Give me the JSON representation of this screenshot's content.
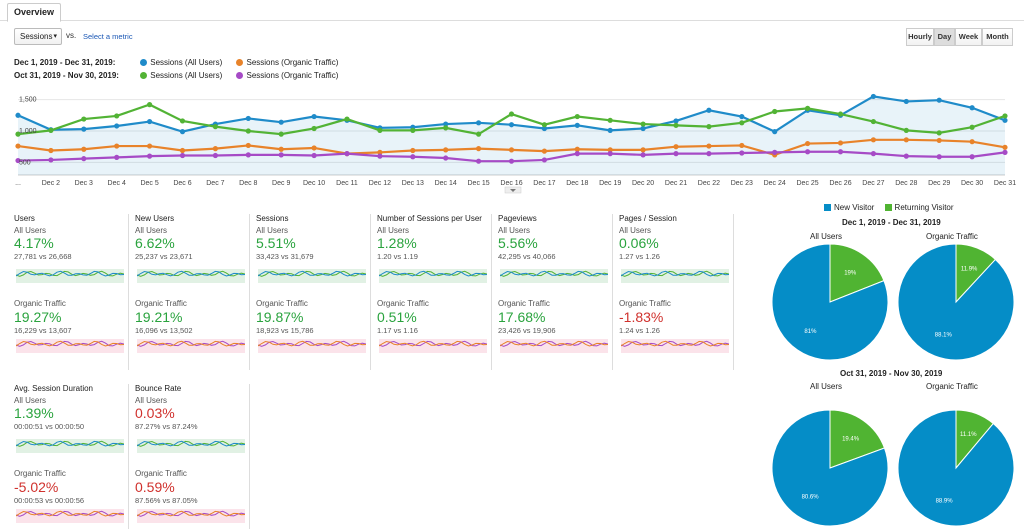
{
  "tab": {
    "label": "Overview"
  },
  "toolbar": {
    "metric_select": "Sessions",
    "vs_label": "vs.",
    "select_metric_link": "Select a metric",
    "granularity": [
      "Hourly",
      "Day",
      "Week",
      "Month"
    ],
    "active_granularity": "Day"
  },
  "legend": {
    "rows": [
      {
        "range": "Dec 1, 2019 - Dec 31, 2019:",
        "items": [
          {
            "label": "Sessions (All Users)",
            "color": "#1f8bc9"
          },
          {
            "label": "Sessions (Organic Traffic)",
            "color": "#e8832a"
          }
        ]
      },
      {
        "range": "Oct 31, 2019 - Nov 30, 2019:",
        "items": [
          {
            "label": "Sessions (All Users)",
            "color": "#52b335"
          },
          {
            "label": "Sessions (Organic Traffic)",
            "color": "#a64bc6"
          }
        ]
      }
    ]
  },
  "chart_data": {
    "type": "line",
    "y_ticks": [
      "1,500",
      "1,000",
      "500"
    ],
    "ylim": [
      300,
      1700
    ],
    "x_labels": [
      "...",
      "Dec 2",
      "Dec 3",
      "Dec 4",
      "Dec 5",
      "Dec 6",
      "Dec 7",
      "Dec 8",
      "Dec 9",
      "Dec 10",
      "Dec 11",
      "Dec 12",
      "Dec 13",
      "Dec 14",
      "Dec 15",
      "Dec 16",
      "Dec 17",
      "Dec 18",
      "Dec 19",
      "Dec 20",
      "Dec 21",
      "Dec 22",
      "Dec 23",
      "Dec 24",
      "Dec 25",
      "Dec 26",
      "Dec 27",
      "Dec 28",
      "Dec 29",
      "Dec 30",
      "Dec 31"
    ],
    "series": [
      {
        "name": "Sessions (All Users) Dec 1, 2019 - Dec 31, 2019",
        "color": "#1f8bc9",
        "fill": true,
        "values": [
          1250,
          1020,
          1030,
          1080,
          1150,
          990,
          1110,
          1200,
          1140,
          1230,
          1170,
          1050,
          1060,
          1110,
          1130,
          1100,
          1040,
          1090,
          1010,
          1040,
          1160,
          1330,
          1230,
          990,
          1330,
          1250,
          1550,
          1470,
          1490,
          1370,
          1170
        ]
      },
      {
        "name": "Sessions (Organic Traffic) Dec 1, 2019 - Dec 31, 2019",
        "color": "#e8832a",
        "fill": false,
        "values": [
          760,
          690,
          710,
          760,
          760,
          690,
          720,
          770,
          710,
          730,
          640,
          660,
          690,
          700,
          720,
          700,
          680,
          710,
          700,
          700,
          750,
          760,
          770,
          620,
          800,
          810,
          860,
          860,
          850,
          830,
          740
        ]
      },
      {
        "name": "Sessions (All Users) Oct 31, 2019 - Nov 30, 2019",
        "color": "#52b335",
        "fill": false,
        "values": [
          950,
          1010,
          1190,
          1240,
          1420,
          1160,
          1070,
          1000,
          950,
          1040,
          1190,
          1010,
          1010,
          1050,
          950,
          1270,
          1100,
          1230,
          1170,
          1110,
          1090,
          1070,
          1130,
          1310,
          1360,
          1270,
          1150,
          1010,
          970,
          1060,
          1240
        ]
      },
      {
        "name": "Sessions (Organic Traffic) Oct 31, 2019 - Nov 30, 2019",
        "color": "#a64bc6",
        "fill": false,
        "values": [
          530,
          540,
          560,
          580,
          600,
          610,
          610,
          620,
          620,
          610,
          640,
          600,
          590,
          570,
          520,
          520,
          540,
          640,
          640,
          620,
          640,
          640,
          650,
          660,
          670,
          670,
          640,
          600,
          590,
          590,
          660
        ]
      }
    ]
  },
  "tiles": [
    {
      "name": "Users",
      "all": {
        "seg": "All Users",
        "pct": "4.17%",
        "cmp": "27,781 vs 26,668",
        "dir": "pos"
      },
      "org": {
        "seg": "Organic Traffic",
        "pct": "19.27%",
        "cmp": "16,229 vs 13,607",
        "dir": "pos"
      }
    },
    {
      "name": "New Users",
      "all": {
        "seg": "All Users",
        "pct": "6.62%",
        "cmp": "25,237 vs 23,671",
        "dir": "pos"
      },
      "org": {
        "seg": "Organic Traffic",
        "pct": "19.21%",
        "cmp": "16,096 vs 13,502",
        "dir": "pos"
      }
    },
    {
      "name": "Sessions",
      "all": {
        "seg": "All Users",
        "pct": "5.51%",
        "cmp": "33,423 vs 31,679",
        "dir": "pos"
      },
      "org": {
        "seg": "Organic Traffic",
        "pct": "19.87%",
        "cmp": "18,923 vs 15,786",
        "dir": "pos"
      }
    },
    {
      "name": "Number of Sessions per User",
      "all": {
        "seg": "All Users",
        "pct": "1.28%",
        "cmp": "1.20 vs 1.19",
        "dir": "pos"
      },
      "org": {
        "seg": "Organic Traffic",
        "pct": "0.51%",
        "cmp": "1.17 vs 1.16",
        "dir": "pos"
      }
    },
    {
      "name": "Pageviews",
      "all": {
        "seg": "All Users",
        "pct": "5.56%",
        "cmp": "42,295 vs 40,066",
        "dir": "pos"
      },
      "org": {
        "seg": "Organic Traffic",
        "pct": "17.68%",
        "cmp": "23,426 vs 19,906",
        "dir": "pos"
      }
    },
    {
      "name": "Pages / Session",
      "all": {
        "seg": "All Users",
        "pct": "0.06%",
        "cmp": "1.27 vs 1.26",
        "dir": "pos"
      },
      "org": {
        "seg": "Organic Traffic",
        "pct": "-1.83%",
        "cmp": "1.24 vs 1.26",
        "dir": "neg"
      }
    },
    {
      "name": "Avg. Session Duration",
      "all": {
        "seg": "All Users",
        "pct": "1.39%",
        "cmp": "00:00:51 vs 00:00:50",
        "dir": "pos"
      },
      "org": {
        "seg": "Organic Traffic",
        "pct": "-5.02%",
        "cmp": "00:00:53 vs 00:00:56",
        "dir": "neg"
      }
    },
    {
      "name": "Bounce Rate",
      "all": {
        "seg": "All Users",
        "pct": "0.03%",
        "cmp": "87.27% vs 87.24%",
        "dir": "neg"
      },
      "org": {
        "seg": "Organic Traffic",
        "pct": "0.59%",
        "cmp": "87.56% vs 87.05%",
        "dir": "neg"
      }
    }
  ],
  "pie_legend": [
    {
      "label": "New Visitor",
      "color": "#058dc7"
    },
    {
      "label": "Returning Visitor",
      "color": "#50b432"
    }
  ],
  "pies": [
    {
      "period": "Dec 1, 2019 - Dec 31, 2019",
      "charts": [
        {
          "segment": "All Users",
          "new_pct": 81,
          "ret_pct": 19,
          "new_label": "81%",
          "ret_label": "19%"
        },
        {
          "segment": "Organic Traffic",
          "new_pct": 88.1,
          "ret_pct": 11.9,
          "new_label": "88.1%",
          "ret_label": "11.9%"
        }
      ]
    },
    {
      "period": "Oct 31, 2019 - Nov 30, 2019",
      "charts": [
        {
          "segment": "All Users",
          "new_pct": 80.6,
          "ret_pct": 19.4,
          "new_label": "80.6%",
          "ret_label": "19.4%"
        },
        {
          "segment": "Organic Traffic",
          "new_pct": 88.9,
          "ret_pct": 11.1,
          "new_label": "88.9%",
          "ret_label": "11.1%"
        }
      ]
    }
  ]
}
